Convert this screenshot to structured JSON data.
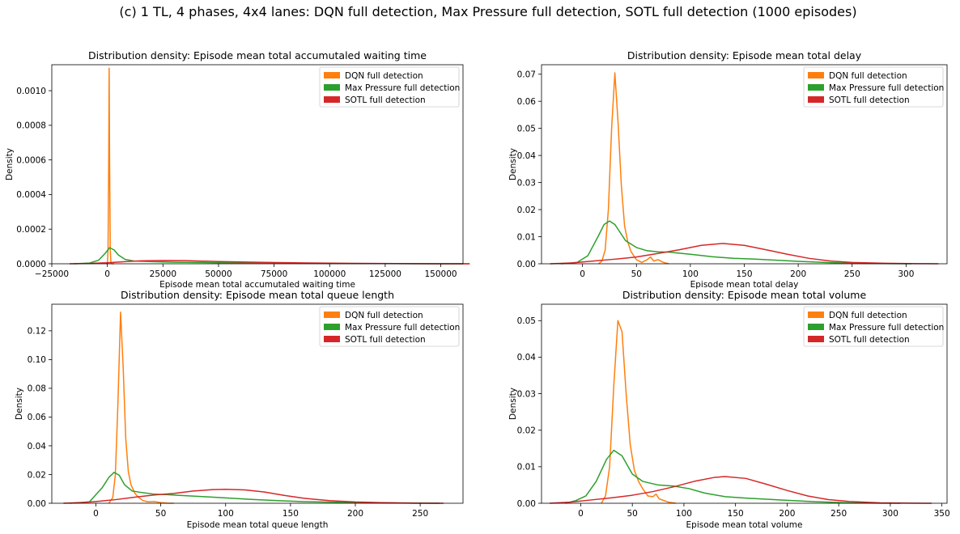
{
  "figure": {
    "suptitle": "(c) 1 TL, 4 phases, 4x4 lanes: DQN full detection, Max Pressure full detection, SOTL full detection (1000 episodes)"
  },
  "colors": {
    "dqn": "#ff7f0e",
    "maxpressure": "#2ca02c",
    "sotl": "#d62728"
  },
  "chart_data": [
    {
      "type": "line",
      "title": "Distribution density: Episode mean total accumutaled waiting time",
      "xlabel": "Episode mean total accumutaled waiting time",
      "ylabel": "Density",
      "xlim": [
        -25000,
        160000
      ],
      "ylim": [
        0,
        0.00115
      ],
      "xticks": [
        -25000,
        0,
        25000,
        50000,
        75000,
        100000,
        125000,
        150000
      ],
      "xticklabels": [
        "−25000",
        "0",
        "25000",
        "50000",
        "75000",
        "100000",
        "125000",
        "150000"
      ],
      "yticks": [
        0,
        0.0002,
        0.0004,
        0.0006,
        0.0008,
        0.001
      ],
      "yticklabels": [
        "0.0000",
        "0.0002",
        "0.0004",
        "0.0006",
        "0.0008",
        "0.0010"
      ],
      "legend": "top-right",
      "series": [
        {
          "name": "DQN full detection",
          "color": "#ff7f0e",
          "x": [
            -500,
            0,
            300,
            600,
            800,
            1000,
            1300,
            1600,
            2000,
            3000
          ],
          "y": [
            0,
            2e-06,
            8e-05,
            0.0006,
            0.00113,
            0.0006,
            8e-05,
            4e-06,
            0,
            0
          ]
        },
        {
          "name": "Max Pressure full detection",
          "color": "#2ca02c",
          "x": [
            -15000,
            -8000,
            -4000,
            -1000,
            1000,
            3000,
            5000,
            8000,
            12000,
            20000,
            30000,
            50000,
            75000,
            100000,
            125000,
            150000,
            163000
          ],
          "y": [
            0,
            4e-06,
            2e-05,
            6e-05,
            9.3e-05,
            8e-05,
            5e-05,
            2.5e-05,
            1.6e-05,
            1.2e-05,
            9e-06,
            6e-06,
            4e-06,
            2e-06,
            1e-06,
            3e-07,
            0
          ]
        },
        {
          "name": "SOTL full detection",
          "color": "#d62728",
          "x": [
            -17000,
            -8000,
            0,
            8000,
            15000,
            25000,
            35000,
            50000,
            70000,
            90000,
            110000,
            130000,
            150000,
            163000
          ],
          "y": [
            0,
            2e-06,
            6e-06,
            1.2e-05,
            1.7e-05,
            1.9e-05,
            1.8e-05,
            1.3e-05,
            8e-06,
            4.5e-06,
            2.5e-06,
            1e-06,
            3e-07,
            0
          ]
        }
      ]
    },
    {
      "type": "line",
      "title": "Distribution density: Episode mean total delay",
      "xlabel": "Episode mean total delay",
      "ylabel": "Density",
      "xlim": [
        -38,
        338
      ],
      "ylim": [
        0,
        0.0735
      ],
      "xticks": [
        0,
        50,
        100,
        150,
        200,
        250,
        300
      ],
      "xticklabels": [
        "0",
        "50",
        "100",
        "150",
        "200",
        "250",
        "300"
      ],
      "yticks": [
        0,
        0.01,
        0.02,
        0.03,
        0.04,
        0.05,
        0.06,
        0.07
      ],
      "yticklabels": [
        "0.00",
        "0.01",
        "0.02",
        "0.03",
        "0.04",
        "0.05",
        "0.06",
        "0.07"
      ],
      "legend": "top-right",
      "series": [
        {
          "name": "DQN full detection",
          "color": "#ff7f0e",
          "x": [
            15,
            18,
            21,
            24,
            27,
            30,
            33,
            36,
            39,
            42,
            45,
            50,
            55,
            60,
            63,
            66,
            70,
            75,
            80
          ],
          "y": [
            0,
            0.001,
            0.005,
            0.02,
            0.05,
            0.0705,
            0.052,
            0.029,
            0.014,
            0.008,
            0.0045,
            0.0015,
            0.0005,
            0.0015,
            0.0025,
            0.001,
            0.0015,
            0.0005,
            0
          ]
        },
        {
          "name": "Max Pressure full detection",
          "color": "#2ca02c",
          "x": [
            -20,
            -5,
            5,
            15,
            20,
            25,
            30,
            35,
            40,
            50,
            60,
            70,
            80,
            100,
            120,
            140,
            160,
            180,
            200,
            230,
            260,
            290,
            305
          ],
          "y": [
            0,
            0.0005,
            0.003,
            0.0105,
            0.0145,
            0.0158,
            0.0145,
            0.0115,
            0.0085,
            0.006,
            0.0048,
            0.0044,
            0.0043,
            0.0035,
            0.0026,
            0.002,
            0.0017,
            0.0013,
            0.0009,
            0.0004,
            0.00015,
            5e-05,
            0
          ]
        },
        {
          "name": "SOTL full detection",
          "color": "#d62728",
          "x": [
            -30,
            -10,
            10,
            30,
            50,
            70,
            90,
            110,
            130,
            150,
            170,
            190,
            210,
            230,
            250,
            280,
            310,
            330
          ],
          "y": [
            0,
            0.0003,
            0.001,
            0.0017,
            0.0025,
            0.0038,
            0.0052,
            0.0068,
            0.0075,
            0.0068,
            0.0052,
            0.0035,
            0.002,
            0.001,
            0.0005,
            0.0002,
            5e-05,
            0
          ]
        }
      ]
    },
    {
      "type": "line",
      "title": "Distribution density: Episode mean total queue length",
      "xlabel": "Episode mean total queue length",
      "ylabel": "Density",
      "xlim": [
        -34,
        283
      ],
      "ylim": [
        0,
        0.1385
      ],
      "xticks": [
        0,
        50,
        100,
        150,
        200,
        250
      ],
      "xticklabels": [
        "0",
        "50",
        "100",
        "150",
        "200",
        "250"
      ],
      "yticks": [
        0,
        0.02,
        0.04,
        0.06,
        0.08,
        0.1,
        0.12
      ],
      "yticklabels": [
        "0.00",
        "0.02",
        "0.04",
        "0.06",
        "0.08",
        "0.10",
        "0.12"
      ],
      "legend": "top-right",
      "series": [
        {
          "name": "DQN full detection",
          "color": "#ff7f0e",
          "x": [
            10,
            13,
            15,
            17,
            19,
            21,
            23,
            25,
            27,
            30,
            33,
            36,
            40,
            45,
            50,
            55,
            60
          ],
          "y": [
            0,
            0.004,
            0.02,
            0.07,
            0.133,
            0.095,
            0.045,
            0.022,
            0.013,
            0.007,
            0.004,
            0.002,
            0.001,
            0.0012,
            0.0004,
            0.0001,
            0
          ]
        },
        {
          "name": "Max Pressure full detection",
          "color": "#2ca02c",
          "x": [
            -20,
            -5,
            5,
            10,
            14,
            18,
            22,
            28,
            35,
            45,
            55,
            70,
            85,
            100,
            120,
            140,
            160,
            190,
            220,
            250,
            265
          ],
          "y": [
            0,
            0.001,
            0.011,
            0.018,
            0.0215,
            0.0195,
            0.013,
            0.0085,
            0.0075,
            0.0063,
            0.006,
            0.0052,
            0.0045,
            0.0037,
            0.0027,
            0.0018,
            0.0011,
            0.0006,
            0.00025,
            5e-05,
            0
          ]
        },
        {
          "name": "SOTL full detection",
          "color": "#d62728",
          "x": [
            -25,
            -10,
            0,
            15,
            30,
            45,
            60,
            75,
            90,
            100,
            115,
            130,
            145,
            160,
            180,
            200,
            220,
            245,
            268
          ],
          "y": [
            0,
            0.0005,
            0.0012,
            0.0025,
            0.0042,
            0.0058,
            0.0068,
            0.0085,
            0.0095,
            0.0097,
            0.0093,
            0.0078,
            0.0055,
            0.0035,
            0.0018,
            0.0009,
            0.0004,
            0.0001,
            0
          ]
        }
      ]
    },
    {
      "type": "line",
      "title": "Distribution density: Episode mean total volume",
      "xlabel": "Episode mean total volume",
      "ylabel": "Density",
      "xlim": [
        -38,
        355
      ],
      "ylim": [
        0,
        0.0545
      ],
      "xticks": [
        0,
        50,
        100,
        150,
        200,
        250,
        300,
        350
      ],
      "xticklabels": [
        "0",
        "50",
        "100",
        "150",
        "200",
        "250",
        "300",
        "350"
      ],
      "yticks": [
        0,
        0.01,
        0.02,
        0.03,
        0.04,
        0.05
      ],
      "yticklabels": [
        "0.00",
        "0.01",
        "0.02",
        "0.03",
        "0.04",
        "0.05"
      ],
      "legend": "top-right",
      "series": [
        {
          "name": "DQN full detection",
          "color": "#ff7f0e",
          "x": [
            20,
            24,
            28,
            32,
            36,
            40,
            44,
            48,
            52,
            56,
            60,
            65,
            70,
            73,
            76,
            80,
            85,
            92
          ],
          "y": [
            0,
            0.002,
            0.01,
            0.032,
            0.05,
            0.047,
            0.03,
            0.016,
            0.009,
            0.006,
            0.004,
            0.002,
            0.0018,
            0.0025,
            0.0012,
            0.0008,
            0.0003,
            0
          ]
        },
        {
          "name": "Max Pressure full detection",
          "color": "#2ca02c",
          "x": [
            -15,
            -5,
            5,
            15,
            25,
            32,
            40,
            50,
            60,
            75,
            90,
            105,
            120,
            140,
            160,
            180,
            200,
            230,
            260,
            290,
            310
          ],
          "y": [
            0,
            0.0007,
            0.002,
            0.006,
            0.012,
            0.0145,
            0.013,
            0.008,
            0.006,
            0.005,
            0.0047,
            0.004,
            0.0028,
            0.0018,
            0.0014,
            0.0011,
            0.0008,
            0.0004,
            0.0001,
            3e-05,
            0
          ]
        },
        {
          "name": "SOTL full detection",
          "color": "#d62728",
          "x": [
            -30,
            -10,
            10,
            30,
            50,
            70,
            90,
            110,
            130,
            140,
            160,
            180,
            200,
            220,
            240,
            260,
            290,
            320,
            340
          ],
          "y": [
            0,
            0.0003,
            0.0009,
            0.0015,
            0.0022,
            0.0032,
            0.0045,
            0.006,
            0.0071,
            0.0073,
            0.0068,
            0.0052,
            0.0035,
            0.002,
            0.001,
            0.0005,
            0.0001,
            2e-05,
            0
          ]
        }
      ]
    }
  ]
}
